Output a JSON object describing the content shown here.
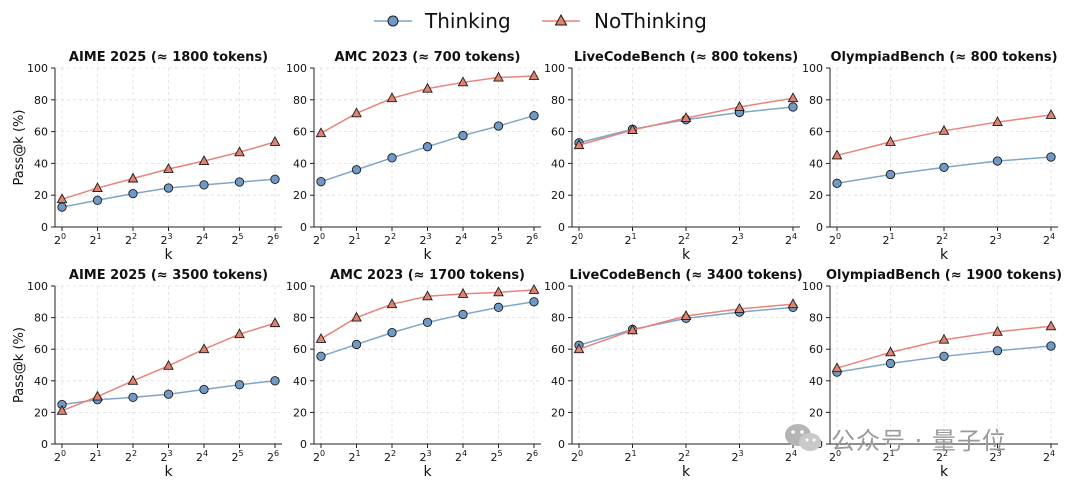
{
  "legend": {
    "items": [
      {
        "name": "Thinking",
        "color": "#7fa6c9",
        "marker": "circle",
        "fill": "#6f9ac7"
      },
      {
        "name": "NoThinking",
        "color": "#e8847a",
        "marker": "triangle",
        "fill": "#e0826f"
      }
    ]
  },
  "watermark": {
    "text": "公众号 · 量子位",
    "icon": "wechat-icon"
  },
  "chart_data": [
    {
      "type": "line",
      "title": "AIME 2025 (≈ 1800 tokens)",
      "xlabel": "k",
      "ylabel": "Pass@k (%)",
      "x_ticks": [
        "0",
        "1",
        "2",
        "3",
        "4",
        "5",
        "6"
      ],
      "ylim": [
        0,
        100
      ],
      "y_ticks": [
        0,
        20,
        40,
        60,
        80,
        100
      ],
      "grid": true,
      "series": [
        {
          "name": "Thinking",
          "values": [
            12.5,
            16.8,
            21,
            24.5,
            26.5,
            28.3,
            30
          ]
        },
        {
          "name": "NoThinking",
          "values": [
            17.5,
            24.5,
            30.5,
            36.5,
            41.5,
            47,
            53.5
          ]
        }
      ]
    },
    {
      "type": "line",
      "title": "AMC 2023 (≈ 700 tokens)",
      "xlabel": "k",
      "ylabel": "",
      "x_ticks": [
        "0",
        "1",
        "2",
        "3",
        "4",
        "5",
        "6"
      ],
      "ylim": [
        0,
        100
      ],
      "y_ticks": [
        0,
        20,
        40,
        60,
        80,
        100
      ],
      "grid": true,
      "series": [
        {
          "name": "Thinking",
          "values": [
            28.5,
            36,
            43.5,
            50.5,
            57.5,
            63.5,
            70
          ]
        },
        {
          "name": "NoThinking",
          "values": [
            59,
            71.5,
            81,
            87,
            91,
            94,
            95
          ]
        }
      ]
    },
    {
      "type": "line",
      "title": "LiveCodeBench (≈ 800 tokens)",
      "xlabel": "k",
      "ylabel": "",
      "x_ticks": [
        "0",
        "1",
        "2",
        "3",
        "4"
      ],
      "ylim": [
        0,
        100
      ],
      "y_ticks": [
        0,
        20,
        40,
        60,
        80,
        100
      ],
      "grid": true,
      "series": [
        {
          "name": "Thinking",
          "values": [
            53,
            61.5,
            67.5,
            72,
            75.5
          ]
        },
        {
          "name": "NoThinking",
          "values": [
            51.5,
            61,
            68.5,
            75.5,
            81
          ]
        }
      ]
    },
    {
      "type": "line",
      "title": "OlympiadBench (≈ 800 tokens)",
      "xlabel": "k",
      "ylabel": "",
      "x_ticks": [
        "0",
        "1",
        "2",
        "3",
        "4"
      ],
      "ylim": [
        0,
        100
      ],
      "y_ticks": [
        0,
        20,
        40,
        60,
        80,
        100
      ],
      "grid": true,
      "series": [
        {
          "name": "Thinking",
          "values": [
            27.5,
            33,
            37.5,
            41.5,
            44
          ]
        },
        {
          "name": "NoThinking",
          "values": [
            45,
            53.5,
            60.5,
            66,
            70.5
          ]
        }
      ]
    },
    {
      "type": "line",
      "title": "AIME 2025 (≈ 3500 tokens)",
      "xlabel": "k",
      "ylabel": "Pass@k (%)",
      "x_ticks": [
        "0",
        "1",
        "2",
        "3",
        "4",
        "5",
        "6"
      ],
      "ylim": [
        0,
        100
      ],
      "y_ticks": [
        0,
        20,
        40,
        60,
        80,
        100
      ],
      "grid": true,
      "series": [
        {
          "name": "Thinking",
          "values": [
            25,
            28,
            29.5,
            31.5,
            34.5,
            37.5,
            40
          ]
        },
        {
          "name": "NoThinking",
          "values": [
            21,
            30,
            40,
            49.5,
            60,
            69.5,
            76.5
          ]
        }
      ]
    },
    {
      "type": "line",
      "title": "AMC 2023 (≈ 1700 tokens)",
      "xlabel": "k",
      "ylabel": "",
      "x_ticks": [
        "0",
        "1",
        "2",
        "3",
        "4",
        "5",
        "6"
      ],
      "ylim": [
        0,
        100
      ],
      "y_ticks": [
        0,
        20,
        40,
        60,
        80,
        100
      ],
      "grid": true,
      "series": [
        {
          "name": "Thinking",
          "values": [
            55.5,
            63,
            70.5,
            77,
            82,
            86.5,
            90
          ]
        },
        {
          "name": "NoThinking",
          "values": [
            66.5,
            80,
            88.5,
            93.5,
            95,
            96,
            97.5
          ]
        }
      ]
    },
    {
      "type": "line",
      "title": "LiveCodeBench (≈ 3400 tokens)",
      "xlabel": "k",
      "ylabel": "",
      "x_ticks": [
        "0",
        "1",
        "2",
        "3",
        "4"
      ],
      "ylim": [
        0,
        100
      ],
      "y_ticks": [
        0,
        20,
        40,
        60,
        80,
        100
      ],
      "grid": true,
      "series": [
        {
          "name": "Thinking",
          "values": [
            62.5,
            72.5,
            79.5,
            83.5,
            86.5
          ]
        },
        {
          "name": "NoThinking",
          "values": [
            60,
            72,
            81,
            85.5,
            88.5
          ]
        }
      ]
    },
    {
      "type": "line",
      "title": "OlympiadBench (≈ 1900 tokens)",
      "xlabel": "k",
      "ylabel": "",
      "x_ticks": [
        "0",
        "1",
        "2",
        "3",
        "4"
      ],
      "ylim": [
        0,
        100
      ],
      "y_ticks": [
        0,
        20,
        40,
        60,
        80,
        100
      ],
      "grid": true,
      "series": [
        {
          "name": "Thinking",
          "values": [
            45.5,
            51,
            55.5,
            59,
            62
          ]
        },
        {
          "name": "NoThinking",
          "values": [
            48,
            58,
            66,
            71,
            74.5
          ]
        }
      ]
    }
  ]
}
